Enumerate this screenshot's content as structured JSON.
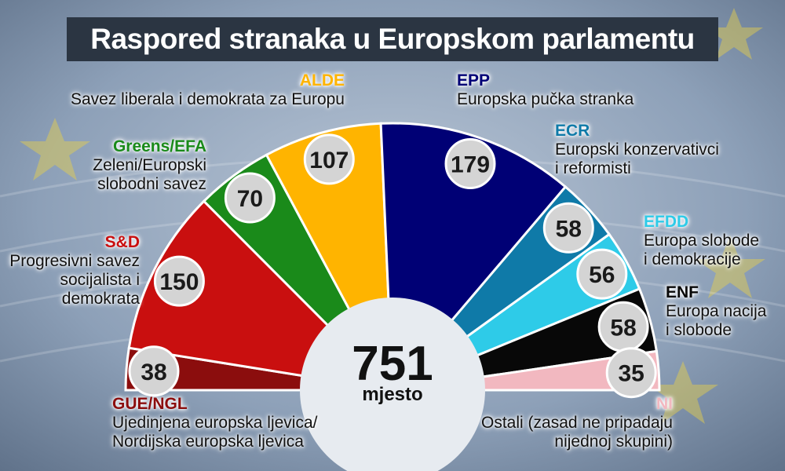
{
  "title": "Raspored stranaka u Europskom parlamentu",
  "chart_data": {
    "type": "pie",
    "variant": "semicircle",
    "total": 751,
    "total_label": "mjesto",
    "categories": [
      "GUE/NGL",
      "S&D",
      "Greens/EFA",
      "ALDE",
      "EPP",
      "ECR",
      "EFDD",
      "ENF",
      "NI"
    ],
    "values": [
      38,
      150,
      70,
      107,
      179,
      58,
      56,
      58,
      35
    ],
    "colors": [
      "#8b0d0d",
      "#c90f0f",
      "#1a8a1a",
      "#ffb400",
      "#000075",
      "#0f7aa8",
      "#2ecbe8",
      "#080808",
      "#f2b8c0"
    ],
    "descriptions": [
      [
        "Ujedinjena europska ljevica/",
        "Nordijska europska ljevica"
      ],
      [
        "Progresivni savez",
        "socijalista i",
        "demokrata"
      ],
      [
        "Zeleni/Europski",
        "slobodni savez"
      ],
      [
        "Savez liberala i demokrata za Europu"
      ],
      [
        "Europska pučka stranka"
      ],
      [
        "Europski konzervativci",
        "i reformisti"
      ],
      [
        "Europa slobode",
        "i demokracije"
      ],
      [
        "Europa nacija",
        "i slobode"
      ],
      [
        "Ostali (zasad ne pripadaju",
        "nijednoj skupini)"
      ]
    ]
  }
}
